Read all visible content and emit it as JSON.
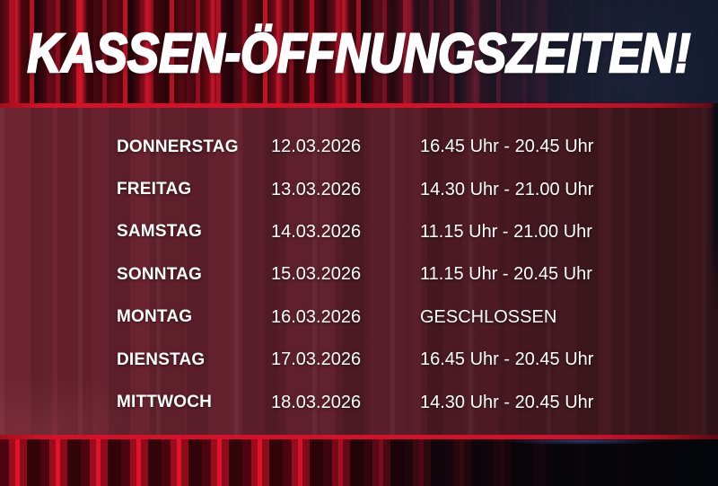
{
  "poster": {
    "title": "KASSEN-ÖFFNUNGSZEITEN!"
  },
  "schedule": {
    "rows": [
      {
        "day": "DONNERSTAG",
        "date": "12.03.2026",
        "hours": "16.45 Uhr - 20.45 Uhr"
      },
      {
        "day": "FREITAG",
        "date": "13.03.2026",
        "hours": "14.30 Uhr - 21.00 Uhr"
      },
      {
        "day": "SAMSTAG",
        "date": "14.03.2026",
        "hours": "11.15 Uhr - 21.00 Uhr"
      },
      {
        "day": "SONNTAG",
        "date": "15.03.2026",
        "hours": "11.15 Uhr - 20.45 Uhr"
      },
      {
        "day": "MONTAG",
        "date": "16.03.2026",
        "hours": "GESCHLOSSEN"
      },
      {
        "day": "DIENSTAG",
        "date": "17.03.2026",
        "hours": "16.45 Uhr - 20.45 Uhr"
      },
      {
        "day": "MITTWOCH",
        "date": "18.03.2026",
        "hours": "14.30 Uhr - 20.45 Uhr"
      }
    ]
  },
  "colors": {
    "accent_red": "#d4102a",
    "panel_maroon": "#63202c",
    "curtain_dark": "#24050c",
    "navy_dark": "#0c1122",
    "text": "#ffffff"
  }
}
